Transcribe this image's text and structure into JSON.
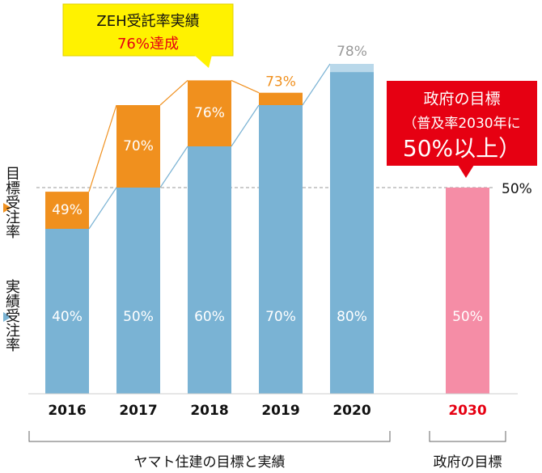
{
  "chart_data": {
    "type": "bar",
    "categories": [
      "2016",
      "2017",
      "2018",
      "2019",
      "2020",
      "2030"
    ],
    "category_colors": [
      "#111111",
      "#111111",
      "#111111",
      "#111111",
      "#111111",
      "#e60012"
    ],
    "series": [
      {
        "name": "目標受注率",
        "color": "#f0901e",
        "values": [
          49,
          70,
          76,
          73,
          78,
          null
        ],
        "value_labels": [
          "49%",
          "70%",
          "76%",
          "73%",
          "78%",
          null
        ]
      },
      {
        "name": "実績受注率",
        "color": "#7ab3d4",
        "cap_color": "#b9d8ea",
        "values": [
          40,
          50,
          60,
          70,
          80,
          null
        ],
        "value_labels": [
          "40%",
          "50%",
          "60%",
          "70%",
          "80%",
          null
        ]
      },
      {
        "name": "政府の目標",
        "color": "#f58da6",
        "values": [
          null,
          null,
          null,
          null,
          null,
          50
        ],
        "value_labels": [
          null,
          null,
          null,
          null,
          null,
          "50%"
        ]
      }
    ],
    "ylim": [
      0,
      100
    ],
    "reference_line": {
      "value": 50,
      "label": "50%"
    },
    "groups": [
      {
        "label": "ヤマト住建の目標と実績",
        "from": 0,
        "to": 4
      },
      {
        "label": "政府の目標",
        "from": 5,
        "to": 5
      }
    ],
    "callouts": [
      {
        "lines": [
          "ZEH受託率実績",
          "76%達成"
        ],
        "color": "#fff200"
      },
      {
        "lines": [
          "政府の目標",
          "（普及率2030年に",
          "50%以上）"
        ],
        "color": "#e60012"
      }
    ]
  }
}
